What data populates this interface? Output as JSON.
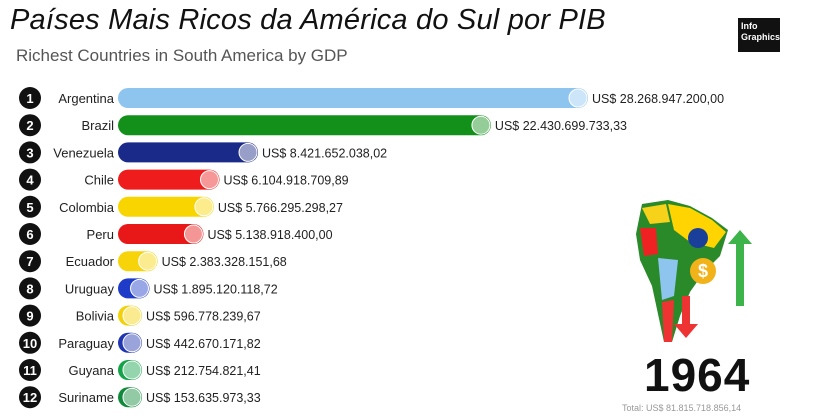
{
  "header": {
    "title": "Países Mais Ricos da América do Sul por PIB",
    "subtitle": "Richest Countries in South America by GDP",
    "logo_line1": "Info",
    "logo_line2": "Graphics"
  },
  "year": "1964",
  "total": "Total: US$ 81.815.718.856,14",
  "chart_data": {
    "type": "bar",
    "orientation": "horizontal",
    "categories": [
      "Argentina",
      "Brazil",
      "Venezuela",
      "Chile",
      "Colombia",
      "Peru",
      "Ecuador",
      "Uruguay",
      "Bolivia",
      "Paraguay",
      "Guyana",
      "Suriname"
    ],
    "ranks": [
      "1",
      "2",
      "3",
      "4",
      "5",
      "6",
      "7",
      "8",
      "9",
      "10",
      "11",
      "12"
    ],
    "values": [
      28268947200.0,
      22430699733.33,
      8421652038.02,
      6104918709.89,
      5766295298.27,
      5138918400.0,
      2383328151.68,
      1895120118.72,
      596778239.67,
      442670171.82,
      212754821.41,
      153635973.33
    ],
    "value_labels": [
      "US$ 28.268.947.200,00",
      "US$ 22.430.699.733,33",
      "US$ 8.421.652.038,02",
      "US$ 6.104.918.709,89",
      "US$ 5.766.295.298,27",
      "US$ 5.138.918.400,00",
      "US$ 2.383.328.151,68",
      "US$ 1.895.120.118,72",
      "US$ 596.778.239,67",
      "US$ 442.670.171,82",
      "US$ 212.754.821,41",
      "US$ 153.635.973,33"
    ],
    "colors": [
      "#8ec5ef",
      "#12901a",
      "#1a2a88",
      "#ee1c1c",
      "#f9d500",
      "#e81818",
      "#f7d40a",
      "#1f3cc8",
      "#f3d10a",
      "#2036b0",
      "#15a34a",
      "#0f8a3a"
    ]
  }
}
